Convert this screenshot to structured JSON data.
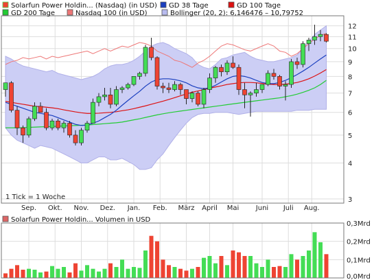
{
  "colors": {
    "up": "#44dd55",
    "down": "#ee4433",
    "gd38": "#1a3fbf",
    "gd100": "#dd1111",
    "gd200": "#22cc33",
    "nasdaq": "#ee7777",
    "bollinger_fill": "#cccef5",
    "bollinger_line": "#b0b0e8",
    "grid": "#dddddd",
    "border": "#777777"
  },
  "legend": {
    "main": [
      {
        "key": "stock",
        "label": "Solarfun Power Holdin... (Nasdaq) (in USD)",
        "swatch": "#ee4433",
        "swatch_border": "#44dd55"
      },
      {
        "key": "gd38",
        "label": "GD 38 Tage",
        "swatch": "#1a3fbf"
      },
      {
        "key": "gd100",
        "label": "GD 100 Tage",
        "swatch": "#dd1111"
      },
      {
        "key": "gd200",
        "label": "GD 200 Tage",
        "swatch": "#22cc33"
      },
      {
        "key": "nasdaq",
        "label": "Nasdaq 100 (in USD)",
        "swatch": "#ee7777"
      },
      {
        "key": "bollinger",
        "label": "Bollinger (20, 2): 6,146476 – 10,79752",
        "swatch": "#b8bbef"
      }
    ],
    "volume": {
      "label": "Solarfun Power Holdin... Volumen in USD",
      "swatch": "#dd6666"
    }
  },
  "note": "1 Tick = 1 Woche",
  "chart_data": [
    {
      "type": "candlestick",
      "title": "",
      "scale": "log",
      "ylim": [
        2.9,
        13
      ],
      "y_ticks": [
        {
          "value": 12,
          "label": "12"
        },
        {
          "value": 11,
          "label": "11"
        },
        {
          "value": 10,
          "label": "10"
        },
        {
          "value": 9,
          "label": "9"
        },
        {
          "value": 8,
          "label": "8"
        },
        {
          "value": 7,
          "label": "7"
        },
        {
          "value": 6,
          "label": "6"
        },
        {
          "value": 5,
          "label": "5"
        },
        {
          "value": 4,
          "label": "4"
        },
        {
          "value": 3,
          "label": "3"
        }
      ],
      "x_ticks": [
        {
          "week": 4,
          "label": "Sep."
        },
        {
          "week": 8.5,
          "label": "Okt."
        },
        {
          "week": 13,
          "label": "Nov."
        },
        {
          "week": 17.5,
          "label": "Dez."
        },
        {
          "week": 22,
          "label": "Jan."
        },
        {
          "week": 26.5,
          "label": "Feb."
        },
        {
          "week": 31,
          "label": "März"
        },
        {
          "week": 35,
          "label": "April"
        },
        {
          "week": 39,
          "label": "Mai"
        },
        {
          "week": 44,
          "label": "Juni"
        },
        {
          "week": 48.5,
          "label": "Juli"
        },
        {
          "week": 52.5,
          "label": "Aug."
        }
      ],
      "ohlc": [
        [
          7.2,
          7.6,
          6.8,
          7.6
        ],
        [
          7.6,
          7.7,
          6.0,
          6.1
        ],
        [
          6.1,
          6.3,
          5.0,
          5.3
        ],
        [
          5.3,
          5.4,
          4.7,
          5.0
        ],
        [
          5.0,
          5.8,
          4.9,
          5.7
        ],
        [
          5.7,
          6.5,
          5.6,
          6.3
        ],
        [
          6.3,
          6.5,
          6.0,
          6.0
        ],
        [
          6.0,
          6.2,
          5.2,
          5.3
        ],
        [
          5.3,
          5.7,
          5.2,
          5.6
        ],
        [
          5.6,
          5.7,
          5.2,
          5.3
        ],
        [
          5.3,
          5.6,
          5.1,
          5.5
        ],
        [
          5.5,
          5.6,
          4.9,
          5.0
        ],
        [
          5.0,
          5.2,
          4.6,
          4.7
        ],
        [
          4.7,
          5.3,
          4.6,
          5.2
        ],
        [
          5.2,
          5.6,
          5.1,
          5.5
        ],
        [
          5.5,
          6.7,
          5.5,
          6.5
        ],
        [
          6.5,
          7.0,
          6.3,
          6.8
        ],
        [
          6.8,
          7.3,
          6.6,
          6.9
        ],
        [
          6.9,
          7.3,
          6.2,
          6.4
        ],
        [
          6.4,
          7.4,
          6.3,
          7.2
        ],
        [
          7.2,
          7.4,
          7.0,
          7.3
        ],
        [
          7.3,
          7.6,
          7.2,
          7.5
        ],
        [
          7.5,
          8.0,
          7.4,
          8.0
        ],
        [
          8.0,
          8.3,
          7.8,
          8.2
        ],
        [
          8.2,
          10.3,
          8.0,
          10.1
        ],
        [
          10.1,
          10.9,
          9.1,
          9.3
        ],
        [
          9.3,
          9.4,
          7.2,
          7.4
        ],
        [
          7.4,
          7.6,
          7.0,
          7.3
        ],
        [
          7.3,
          7.6,
          7.0,
          7.2
        ],
        [
          7.2,
          7.7,
          7.1,
          7.5
        ],
        [
          7.5,
          7.6,
          6.9,
          7.2
        ],
        [
          7.2,
          7.2,
          6.4,
          6.7
        ],
        [
          6.7,
          7.1,
          6.5,
          7.0
        ],
        [
          7.0,
          7.1,
          6.3,
          6.4
        ],
        [
          6.4,
          7.3,
          6.2,
          7.2
        ],
        [
          7.2,
          8.2,
          7.0,
          7.9
        ],
        [
          7.9,
          8.7,
          7.6,
          8.6
        ],
        [
          8.6,
          8.8,
          8.0,
          8.3
        ],
        [
          8.3,
          9.1,
          8.1,
          8.9
        ],
        [
          8.9,
          9.4,
          8.5,
          8.6
        ],
        [
          8.6,
          8.8,
          6.9,
          7.2
        ],
        [
          7.2,
          7.6,
          6.2,
          6.9
        ],
        [
          6.9,
          7.1,
          5.8,
          7.0
        ],
        [
          7.0,
          7.6,
          6.8,
          7.2
        ],
        [
          7.2,
          7.5,
          7.0,
          7.5
        ],
        [
          7.5,
          8.4,
          7.4,
          8.2
        ],
        [
          8.2,
          8.5,
          7.8,
          8.0
        ],
        [
          8.0,
          8.1,
          7.2,
          7.4
        ],
        [
          7.4,
          7.7,
          6.6,
          7.5
        ],
        [
          7.5,
          9.2,
          7.3,
          9.0
        ],
        [
          9.0,
          9.3,
          8.5,
          8.8
        ],
        [
          8.8,
          10.6,
          8.6,
          10.4
        ],
        [
          10.4,
          10.9,
          9.8,
          10.7
        ],
        [
          10.7,
          12.1,
          10.3,
          11.0
        ],
        [
          11.0,
          11.6,
          10.6,
          11.2
        ],
        [
          11.2,
          11.3,
          10.5,
          10.6
        ]
      ],
      "series": [
        {
          "key": "gd38",
          "values": [
            6.5,
            6.4,
            6.3,
            6.2,
            6.1,
            6.0,
            5.95,
            5.9,
            5.85,
            5.75,
            5.65,
            5.55,
            5.45,
            5.4,
            5.42,
            5.5,
            5.6,
            5.75,
            5.9,
            6.1,
            6.35,
            6.6,
            6.85,
            7.1,
            7.4,
            7.65,
            7.8,
            7.85,
            7.85,
            7.8,
            7.72,
            7.6,
            7.42,
            7.3,
            7.25,
            7.3,
            7.45,
            7.65,
            7.85,
            8.0,
            8.05,
            8.0,
            7.9,
            7.75,
            7.62,
            7.55,
            7.55,
            7.62,
            7.75,
            7.92,
            8.12,
            8.35,
            8.6,
            8.9,
            9.2,
            9.5
          ]
        },
        {
          "key": "gd100",
          "values": [
            6.55,
            6.5,
            6.45,
            6.4,
            6.35,
            6.3,
            6.28,
            6.25,
            6.22,
            6.18,
            6.12,
            6.07,
            6.02,
            5.98,
            5.95,
            5.95,
            5.96,
            5.98,
            6.0,
            6.03,
            6.08,
            6.12,
            6.18,
            6.25,
            6.32,
            6.4,
            6.48,
            6.56,
            6.65,
            6.75,
            6.85,
            6.95,
            7.05,
            7.12,
            7.2,
            7.28,
            7.35,
            7.42,
            7.5,
            7.55,
            7.6,
            7.62,
            7.62,
            7.6,
            7.56,
            7.52,
            7.5,
            7.5,
            7.52,
            7.56,
            7.62,
            7.72,
            7.85,
            8.02,
            8.22,
            8.45
          ]
        },
        {
          "key": "gd200",
          "values": [
            5.3,
            5.3,
            5.3,
            5.31,
            5.32,
            5.33,
            5.34,
            5.35,
            5.36,
            5.37,
            5.38,
            5.39,
            5.4,
            5.41,
            5.42,
            5.44,
            5.46,
            5.48,
            5.5,
            5.52,
            5.55,
            5.6,
            5.65,
            5.7,
            5.76,
            5.82,
            5.88,
            5.93,
            5.98,
            6.02,
            6.06,
            6.1,
            6.14,
            6.18,
            6.22,
            6.26,
            6.3,
            6.34,
            6.38,
            6.42,
            6.46,
            6.5,
            6.54,
            6.58,
            6.62,
            6.66,
            6.7,
            6.74,
            6.8,
            6.86,
            6.94,
            7.04,
            7.16,
            7.3,
            7.5,
            7.75
          ]
        },
        {
          "key": "nasdaq",
          "values": [
            8.8,
            9.0,
            9.1,
            9.3,
            9.2,
            9.3,
            9.4,
            9.2,
            9.4,
            9.3,
            9.4,
            9.5,
            9.6,
            9.7,
            9.8,
            9.6,
            9.8,
            10.0,
            9.8,
            10.0,
            10.2,
            10.1,
            10.3,
            10.5,
            10.4,
            10.2,
            9.8,
            9.6,
            9.4,
            9.1,
            9.0,
            8.8,
            8.6,
            8.9,
            9.1,
            9.4,
            9.8,
            10.2,
            10.4,
            10.3,
            10.1,
            9.9,
            9.8,
            10.0,
            10.2,
            10.4,
            10.2,
            9.8,
            9.7,
            9.4,
            9.6,
            10.0,
            10.4,
            10.8,
            11.1,
            11.3
          ]
        },
        {
          "key": "boll_upper",
          "values": [
            9.4,
            9.2,
            8.9,
            8.7,
            8.6,
            8.5,
            8.4,
            8.3,
            8.4,
            8.2,
            8.1,
            8.0,
            7.9,
            7.8,
            7.9,
            8.0,
            8.2,
            8.5,
            8.7,
            8.8,
            8.8,
            8.9,
            9.1,
            9.4,
            9.8,
            10.2,
            10.4,
            10.5,
            10.3,
            10.0,
            9.8,
            9.6,
            9.3,
            8.8,
            8.6,
            8.5,
            8.8,
            9.2,
            9.3,
            9.5,
            9.6,
            9.7,
            9.4,
            9.2,
            9.1,
            9.0,
            9.0,
            9.1,
            9.2,
            9.3,
            9.5,
            10.0,
            10.6,
            11.2,
            11.6,
            12.0
          ]
        },
        {
          "key": "boll_lower",
          "values": [
            5.3,
            5.0,
            4.8,
            4.7,
            4.6,
            4.5,
            4.6,
            4.55,
            4.5,
            4.4,
            4.3,
            4.2,
            4.1,
            4.0,
            4.0,
            4.1,
            4.2,
            4.2,
            4.1,
            4.1,
            4.15,
            4.05,
            3.95,
            3.8,
            3.8,
            3.85,
            4.1,
            4.3,
            4.6,
            4.9,
            5.2,
            5.5,
            5.75,
            5.9,
            5.95,
            5.95,
            6.0,
            6.0,
            6.0,
            5.95,
            5.9,
            5.95,
            6.0,
            6.05,
            6.05,
            6.05,
            6.05,
            6.05,
            6.05,
            6.05,
            6.1,
            6.1,
            6.1,
            6.15,
            6.15,
            6.15
          ]
        }
      ]
    },
    {
      "type": "bar",
      "title": "",
      "ylabel": "",
      "ylim": [
        0,
        0.3
      ],
      "y_ticks": [
        {
          "value": 0,
          "label": "0,0Mrd"
        },
        {
          "value": 0.1,
          "label": "0,1Mrd"
        },
        {
          "value": 0.2,
          "label": "0,2Mrd"
        },
        {
          "value": 0.3,
          "label": "0,3Mrd"
        }
      ],
      "values": [
        0.025,
        0.05,
        0.07,
        0.045,
        0.05,
        0.045,
        0.03,
        0.035,
        0.065,
        0.05,
        0.06,
        0.03,
        0.08,
        0.04,
        0.07,
        0.05,
        0.035,
        0.05,
        0.08,
        0.06,
        0.1,
        0.05,
        0.06,
        0.055,
        0.15,
        0.23,
        0.2,
        0.1,
        0.07,
        0.06,
        0.05,
        0.04,
        0.05,
        0.06,
        0.11,
        0.12,
        0.08,
        0.12,
        0.07,
        0.15,
        0.14,
        0.12,
        0.12,
        0.08,
        0.06,
        0.1,
        0.06,
        0.065,
        0.06,
        0.13,
        0.1,
        0.12,
        0.15,
        0.25,
        0.195,
        0.13
      ],
      "colors": [
        "down",
        "down",
        "down",
        "down",
        "up",
        "up",
        "up",
        "down",
        "up",
        "up",
        "up",
        "down",
        "down",
        "up",
        "up",
        "up",
        "up",
        "up",
        "down",
        "up",
        "up",
        "up",
        "up",
        "up",
        "up",
        "down",
        "down",
        "down",
        "down",
        "up",
        "down",
        "down",
        "up",
        "down",
        "up",
        "up",
        "up",
        "down",
        "up",
        "down",
        "down",
        "down",
        "up",
        "up",
        "up",
        "up",
        "down",
        "down",
        "up",
        "up",
        "down",
        "up",
        "up",
        "up",
        "up",
        "down"
      ]
    }
  ]
}
